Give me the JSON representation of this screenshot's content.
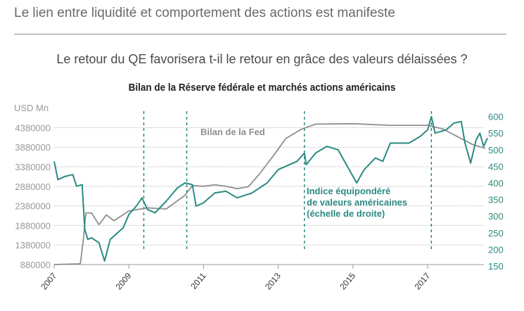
{
  "header": {
    "title": "Le lien entre liquidité et comportement des actions est manifeste"
  },
  "subtitle": "Le retour du QE favorisera t-il le retour en grâce des valeurs délaissées ?",
  "chart_data": {
    "type": "line",
    "title": "Bilan de la Réserve fédérale et marchés actions américains",
    "left_axis": {
      "unit_label": "USD Mn",
      "ticks": [
        880000,
        1380000,
        1880000,
        2380000,
        2880000,
        3380000,
        3880000,
        4380000
      ],
      "range": [
        880000,
        4380000
      ]
    },
    "right_axis": {
      "ticks": [
        150,
        200,
        250,
        300,
        350,
        400,
        450,
        500,
        550,
        600
      ],
      "range": [
        150,
        600
      ]
    },
    "x_axis": {
      "ticks": [
        "2007",
        "2009",
        "2011",
        "2013",
        "2015",
        "2017"
      ],
      "range": [
        2007,
        2018.6
      ]
    },
    "grid": true,
    "colors": {
      "fed": "#8f8f8f",
      "index": "#2a8a82"
    },
    "vertical_markers": [
      2009.4,
      2010.55,
      2013.7,
      2017.1
    ],
    "annotations": {
      "fed": "Bilan de la Fed",
      "index": [
        "Indice équipondéré",
        "de valeurs américaines",
        "(échelle de droite)"
      ]
    },
    "series": [
      {
        "name": "Bilan de la Fed",
        "axis": "left",
        "x": [
          2007.0,
          2007.7,
          2007.78,
          2007.85,
          2008.0,
          2008.2,
          2008.4,
          2008.6,
          2009.0,
          2009.5,
          2010.0,
          2010.5,
          2010.7,
          2011.0,
          2011.3,
          2011.6,
          2011.9,
          2012.2,
          2012.5,
          2012.9,
          2013.2,
          2013.6,
          2014.0,
          2015.0,
          2016.0,
          2017.0,
          2017.4,
          2017.8,
          2018.2,
          2018.55
        ],
        "y": [
          880000,
          900000,
          1500000,
          2200000,
          2200000,
          1900000,
          2150000,
          2000000,
          2250000,
          2330000,
          2300000,
          2650000,
          2900000,
          2880000,
          2920000,
          2880000,
          2820000,
          2870000,
          3200000,
          3700000,
          4100000,
          4330000,
          4470000,
          4480000,
          4440000,
          4440000,
          4350000,
          4150000,
          3950000,
          3850000
        ]
      },
      {
        "name": "Indice équipondéré de valeurs américaines (échelle de droite)",
        "axis": "right",
        "x": [
          2007.0,
          2007.1,
          2007.3,
          2007.5,
          2007.6,
          2007.75,
          2007.82,
          2007.9,
          2008.0,
          2008.2,
          2008.35,
          2008.5,
          2008.7,
          2008.85,
          2009.0,
          2009.2,
          2009.35,
          2009.5,
          2009.7,
          2010.0,
          2010.3,
          2010.5,
          2010.7,
          2010.8,
          2011.0,
          2011.3,
          2011.6,
          2011.9,
          2012.3,
          2012.7,
          2013.0,
          2013.5,
          2013.7,
          2013.75,
          2014.0,
          2014.3,
          2014.6,
          2014.8,
          2015.0,
          2015.1,
          2015.3,
          2015.6,
          2015.8,
          2016.0,
          2016.5,
          2016.8,
          2017.0,
          2017.1,
          2017.2,
          2017.5,
          2017.7,
          2017.9,
          2018.0,
          2018.15,
          2018.3,
          2018.4,
          2018.5,
          2018.6
        ],
        "y": [
          465,
          410,
          420,
          425,
          390,
          395,
          260,
          230,
          235,
          220,
          165,
          230,
          250,
          265,
          305,
          330,
          355,
          320,
          310,
          345,
          385,
          400,
          395,
          330,
          340,
          370,
          375,
          355,
          370,
          400,
          440,
          465,
          490,
          455,
          490,
          510,
          500,
          460,
          420,
          400,
          440,
          475,
          465,
          520,
          520,
          540,
          560,
          600,
          550,
          560,
          580,
          585,
          520,
          460,
          530,
          550,
          510,
          535
        ]
      }
    ]
  }
}
